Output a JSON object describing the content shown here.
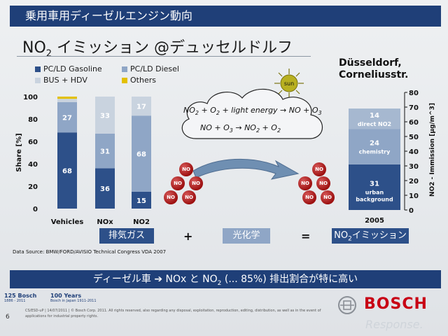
{
  "header": {
    "title": "乗用車用ディーゼルエンジン動向"
  },
  "main_title": {
    "pre": "NO",
    "sub": "2",
    "post": " イミッション @デュッセルドルフ"
  },
  "legend": [
    {
      "label": "PC/LD Gasoline",
      "color": "#2d5089"
    },
    {
      "label": "PC/LD Diesel",
      "color": "#8fa6c6"
    },
    {
      "label": "BUS + HDV",
      "color": "#c9d3df"
    },
    {
      "label": "Others",
      "color": "#e3c000"
    }
  ],
  "location": {
    "line1": "Düsseldorf,",
    "line2": "Corneliusstr."
  },
  "sun_label": "sun",
  "equation1": {
    "a": "NO",
    "a_sub": "2",
    "b": " + O",
    "b_sub": "2",
    "c": " + light energy → NO + O",
    "c_sub": "3"
  },
  "equation2": {
    "a": "NO + O",
    "a_sub": "3",
    "b": " → NO",
    "b_sub": "2",
    "c": " + O",
    "c_sub": "2"
  },
  "molecule_label": "NO",
  "chart_data": [
    {
      "type": "bar",
      "stacked": true,
      "categories": [
        "Vehicles",
        "NOx",
        "NO2"
      ],
      "series": [
        {
          "name": "PC/LD Gasoline",
          "values": [
            68,
            36,
            15
          ],
          "labels": [
            "68",
            "36",
            "15"
          ]
        },
        {
          "name": "PC/LD Diesel",
          "values": [
            27,
            31,
            68
          ],
          "labels": [
            "27",
            "31",
            "68"
          ]
        },
        {
          "name": "BUS + HDV",
          "values": [
            3,
            33,
            17
          ],
          "labels": [
            "",
            "33",
            "17"
          ]
        },
        {
          "name": "Others",
          "values": [
            2,
            0,
            0
          ],
          "labels": [
            "",
            "",
            ""
          ]
        }
      ],
      "ylabel": "Share [%]",
      "ylim": [
        0,
        100
      ],
      "yticks": [
        "0",
        "20",
        "40",
        "60",
        "80",
        "100"
      ]
    },
    {
      "type": "bar",
      "stacked": true,
      "categories": [
        "2005"
      ],
      "series": [
        {
          "name": "urban background",
          "values": [
            31
          ],
          "label": "31",
          "sublabel": "urban background"
        },
        {
          "name": "chemistry",
          "values": [
            24
          ],
          "label": "24",
          "sublabel": "chemistry"
        },
        {
          "name": "direct NO2",
          "values": [
            14
          ],
          "label": "14",
          "sublabel": "direct NO2"
        }
      ],
      "ylabel": "NO2 - Immission [µg/m^3]",
      "ylim": [
        0,
        80
      ],
      "yticks": [
        "0",
        "10",
        "20",
        "30",
        "40",
        "50",
        "60",
        "70",
        "80"
      ]
    }
  ],
  "tags": {
    "exhaust": "排気ガス",
    "plus": "+",
    "photochem": "光化学",
    "equals": "=",
    "result_pre": "NO",
    "result_sub": "2",
    "result_post": "イミッション"
  },
  "source": "Data Source: BMW/FORD/AVISIO Technical Congress VDA 2007",
  "bottom_banner": {
    "pre": "ディーゼル車 ➔ NOx と NO",
    "sub": "2",
    "post": " (... 85%) 排出割合が特に高い"
  },
  "footer": {
    "logo125_main": "125 Bosch",
    "logo125_years": "1886 - 2011",
    "logo100_main": "100 Years",
    "logo100_sub": "Bosch in Japan 1911-2011",
    "page_number": "6",
    "legal": "CS/ESD-uP | 14/07/2011 | © Bosch Corp. 2011. All rights reserved, also regarding any disposal, exploitation, reproduction, editing, distribution, as well as in the event of applications for industrial property rights.",
    "brand": "BOSCH",
    "watermark": "Response."
  }
}
